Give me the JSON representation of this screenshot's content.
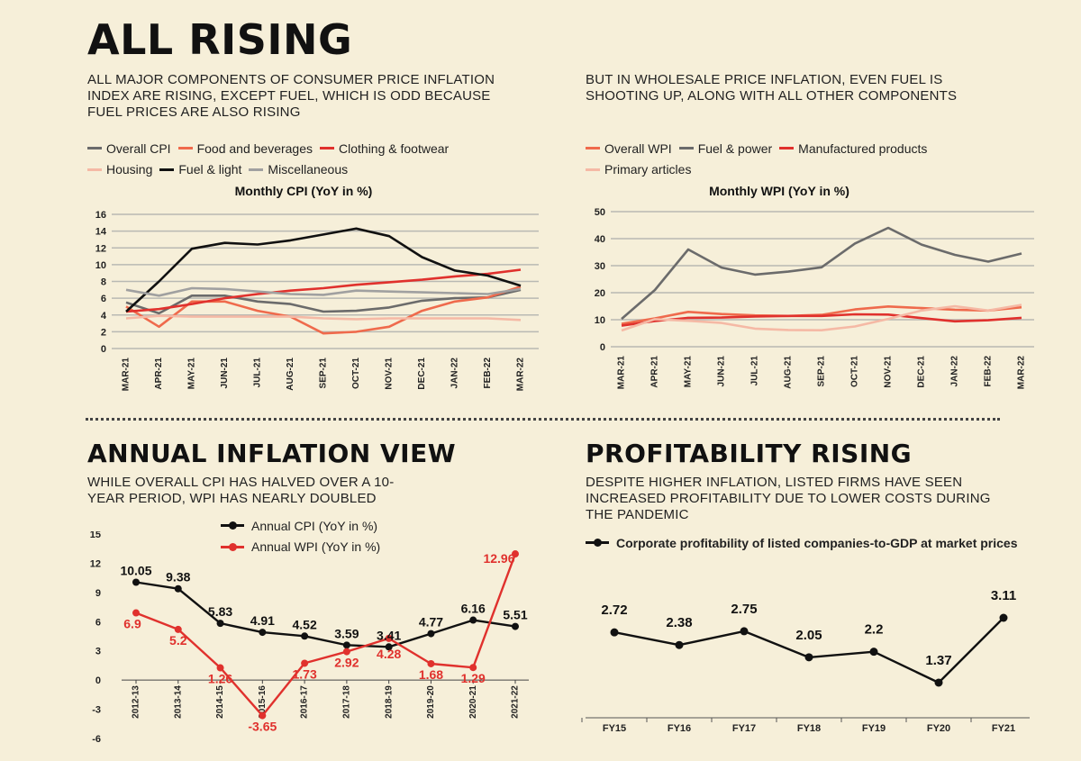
{
  "cpi_section": {
    "title": "ALL RISING",
    "subtitle": "ALL MAJOR COMPONENTS OF CONSUMER PRICE INFLATION INDEX ARE RISING, EXCEPT FUEL, WHICH IS ODD BECAUSE FUEL PRICES ARE ALSO RISING"
  },
  "wpi_section": {
    "subtitle": "BUT IN WHOLESALE PRICE INFLATION, EVEN FUEL IS SHOOTING UP, ALONG WITH ALL OTHER COMPONENTS"
  },
  "annual_section": {
    "title": "ANNUAL INFLATION VIEW",
    "subtitle": "WHILE OVERALL CPI HAS HALVED OVER A 10-YEAR PERIOD, WPI HAS NEARLY DOUBLED"
  },
  "profit_section": {
    "title": "PROFITABILITY RISING",
    "subtitle": "DESPITE HIGHER INFLATION, LISTED FIRMS HAVE SEEN INCREASED PROFITABILITY DUE TO LOWER COSTS DURING THE PANDEMIC"
  },
  "chart_data": [
    {
      "id": "cpi",
      "type": "line",
      "title": "Monthly CPI (YoY in %)",
      "categories": [
        "MAR-21",
        "APR-21",
        "MAY-21",
        "JUN-21",
        "JUL-21",
        "AUG-21",
        "SEP-21",
        "OCT-21",
        "NOV-21",
        "DEC-21",
        "JAN-22",
        "FEB-22",
        "MAR-22"
      ],
      "ylim": [
        0,
        16
      ],
      "yticks": [
        0,
        2,
        4,
        6,
        8,
        10,
        12,
        14,
        16
      ],
      "grid": true,
      "legend_position": "top",
      "series": [
        {
          "name": "Overall CPI",
          "color": "#6b6b6b",
          "values": [
            5.5,
            4.2,
            6.3,
            6.3,
            5.6,
            5.3,
            4.4,
            4.5,
            4.9,
            5.7,
            6.0,
            6.1,
            7.0
          ]
        },
        {
          "name": "Food and beverages",
          "color": "#ef6a4c",
          "values": [
            5.0,
            2.6,
            5.6,
            5.6,
            4.5,
            3.8,
            1.8,
            2.0,
            2.6,
            4.5,
            5.6,
            6.1,
            7.4
          ]
        },
        {
          "name": "Clothing & footwear",
          "color": "#e0312d",
          "values": [
            4.4,
            4.7,
            5.3,
            6.0,
            6.5,
            6.9,
            7.2,
            7.6,
            7.9,
            8.2,
            8.6,
            8.9,
            9.4
          ]
        },
        {
          "name": "Housing",
          "color": "#f5b9a5",
          "values": [
            3.6,
            3.9,
            3.8,
            3.8,
            3.8,
            3.8,
            3.6,
            3.5,
            3.6,
            3.6,
            3.6,
            3.6,
            3.4
          ]
        },
        {
          "name": "Fuel & light",
          "color": "#111111",
          "values": [
            4.4,
            8.0,
            11.9,
            12.6,
            12.4,
            12.9,
            13.6,
            14.3,
            13.4,
            10.9,
            9.3,
            8.7,
            7.5
          ]
        },
        {
          "name": "Miscellaneous",
          "color": "#a0a0a0",
          "values": [
            7.0,
            6.3,
            7.2,
            7.1,
            6.8,
            6.5,
            6.4,
            6.9,
            6.8,
            6.7,
            6.6,
            6.5,
            7.1
          ]
        }
      ]
    },
    {
      "id": "wpi",
      "type": "line",
      "title": "Monthly WPI (YoY in %)",
      "categories": [
        "MAR-21",
        "APR-21",
        "MAY-21",
        "JUN-21",
        "JUL-21",
        "AUG-21",
        "SEP-21",
        "OCT-21",
        "NOV-21",
        "DEC-21",
        "JAN-22",
        "FEB-22",
        "MAR-22"
      ],
      "ylim": [
        0,
        50
      ],
      "yticks": [
        0,
        10,
        20,
        30,
        40,
        50
      ],
      "grid": true,
      "legend_position": "top",
      "series": [
        {
          "name": "Overall WPI",
          "color": "#ef6a4c",
          "values": [
            8.5,
            10.5,
            12.9,
            12.1,
            11.6,
            11.4,
            11.8,
            13.8,
            14.9,
            14.3,
            13.7,
            13.4,
            14.6
          ]
        },
        {
          "name": "Fuel & power",
          "color": "#6b6b6b",
          "values": [
            10.3,
            21.0,
            36.0,
            29.3,
            26.7,
            27.8,
            29.4,
            38.2,
            44.0,
            37.8,
            34.0,
            31.5,
            34.5
          ]
        },
        {
          "name": "Manufactured products",
          "color": "#e0312d",
          "values": [
            7.8,
            9.5,
            10.7,
            10.8,
            11.2,
            11.4,
            11.4,
            12.0,
            11.9,
            10.6,
            9.4,
            9.8,
            10.7
          ]
        },
        {
          "name": "Primary articles",
          "color": "#f5b9a5",
          "values": [
            6.0,
            10.2,
            9.6,
            8.8,
            6.7,
            6.2,
            6.1,
            7.5,
            10.3,
            13.4,
            15.0,
            13.4,
            15.5
          ]
        }
      ]
    },
    {
      "id": "annual",
      "type": "line",
      "categories": [
        "2012-13",
        "2013-14",
        "2014-15",
        "2015-16",
        "2016-17",
        "2017-18",
        "2018-19",
        "2019-20",
        "2020-21",
        "2021-22"
      ],
      "ylim": [
        -6,
        15
      ],
      "yticks": [
        -6,
        -3,
        0,
        3,
        6,
        9,
        12,
        15
      ],
      "legend_position": "top",
      "series": [
        {
          "name": "Annual CPI (YoY in %)",
          "color": "#111111",
          "values": [
            10.05,
            9.38,
            5.83,
            4.91,
            4.52,
            3.59,
            3.41,
            4.77,
            6.16,
            5.51
          ],
          "labels": [
            "10.05",
            "9.38",
            "5.83",
            "4.91",
            "4.52",
            "3.59",
            "3.41",
            "4.77",
            "6.16",
            "5.51"
          ]
        },
        {
          "name": "Annual WPI (YoY in %)",
          "color": "#e0312d",
          "values": [
            6.9,
            5.2,
            1.26,
            -3.65,
            1.73,
            2.92,
            4.28,
            1.68,
            1.29,
            12.96
          ],
          "labels": [
            "6.9",
            "5.2",
            "1.26",
            "-3.65",
            "1.73",
            "2.92",
            "4.28",
            "1.68",
            "1.29",
            "12.96"
          ]
        }
      ]
    },
    {
      "id": "profit",
      "type": "line",
      "categories": [
        "FY15",
        "FY16",
        "FY17",
        "FY18",
        "FY19",
        "FY20",
        "FY21"
      ],
      "legend_position": "top",
      "series": [
        {
          "name": "Corporate profitability of listed companies-to-GDP at market prices",
          "color": "#111111",
          "values": [
            2.72,
            2.38,
            2.75,
            2.05,
            2.2,
            1.37,
            3.11
          ],
          "labels": [
            "2.72",
            "2.38",
            "2.75",
            "2.05",
            "2.2",
            "1.37",
            "3.11"
          ]
        }
      ]
    }
  ]
}
